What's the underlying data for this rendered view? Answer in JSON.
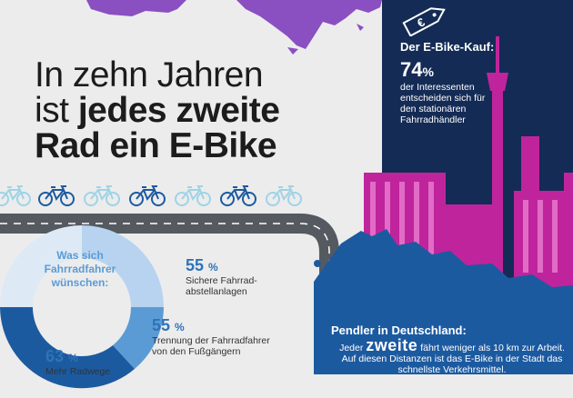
{
  "title": {
    "line1": "In zehn Jahren",
    "line2_prefix": "ist ",
    "line2_bold": "jedes zweite",
    "line3": "Rad ein E-Bike"
  },
  "price_tag_icon": "euro-tag-icon",
  "bike_icon": "bicycle-icon",
  "ebike_kauf": {
    "title": "Der E-Bike-Kauf:",
    "percent_value": "74",
    "percent_sign": "%",
    "description": "der Interessenten entscheiden sich für den stationären Fahrradhändler"
  },
  "wishes": {
    "title": "Was sich Fahrradfahrer wünschen:",
    "items": [
      {
        "value": "55",
        "sign": "%",
        "label": "Sichere Fahrrad-abstellanlagen"
      },
      {
        "value": "55",
        "sign": "%",
        "label": "Trennung der Fahrradfahrer von den Fußgängern"
      },
      {
        "value": "63",
        "sign": "%",
        "label": "Mehr Radwege"
      }
    ]
  },
  "pendler": {
    "title": "Pendler in Deutschland:",
    "prefix": "Jeder ",
    "big": "zweite",
    "rest": " fährt weniger als 10 km zur Arbeit. Auf diesen Distanzen ist das E-Bike in der Stadt das schnellste Verkehrsmittel."
  },
  "colors": {
    "navy": "#142b55",
    "magenta": "#c0249c",
    "purple": "#8a4fc1",
    "blue": "#1c5aa0",
    "light_blue": "#b7d3ef"
  }
}
